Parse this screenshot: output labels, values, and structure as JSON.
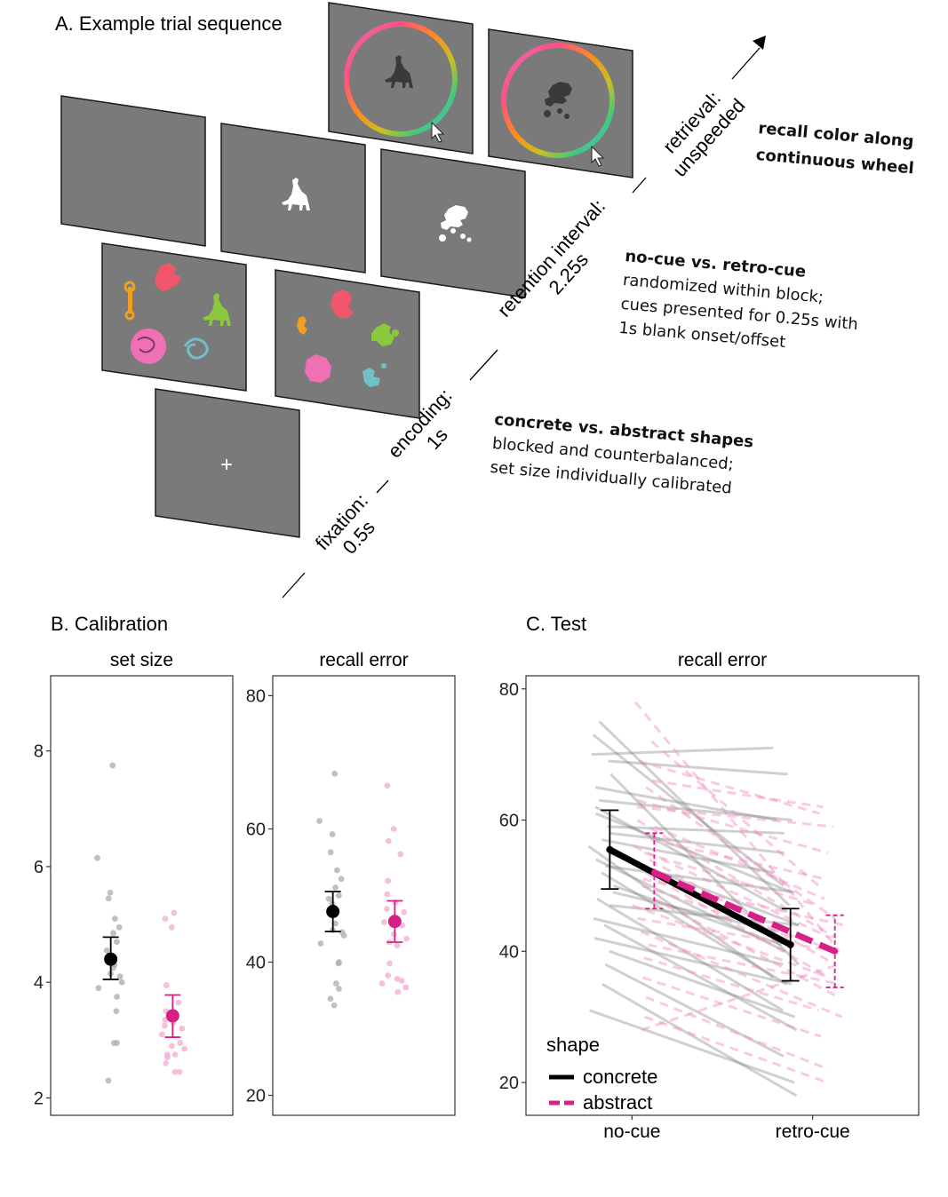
{
  "panelA": {
    "title": "A. Example trial sequence",
    "phases": {
      "fixation": [
        "fixation:",
        "0.5s"
      ],
      "encoding": [
        "encoding:",
        "1s"
      ],
      "retention": [
        "retention interval:",
        "2.25s"
      ],
      "retrieval": [
        "retrieval:",
        "unspeeded"
      ]
    },
    "fixation_symbol": "+",
    "notes": {
      "retrieval": [
        "recall color along",
        "continuous wheel"
      ],
      "cue": [
        "no-cue vs. retro-cue",
        "randomized within block;",
        "cues presented for 0.25s with",
        "1s blank onset/offset"
      ],
      "shapes": [
        "concrete vs. abstract shapes",
        "blocked and counterbalanced;",
        "set size individually calibrated"
      ]
    },
    "stimulus_colors": {
      "screen": "#7a7a7a",
      "wrench": "#f0a020",
      "witch": "#f2566a",
      "wolf": "#8cc83c",
      "globe": "#f070b4",
      "rope": "#70c0c8"
    }
  },
  "panelB": {
    "title": "B. Calibration"
  },
  "panelC": {
    "title": "C. Test"
  },
  "legend": {
    "title": "shape",
    "items": [
      "concrete",
      "abstract"
    ]
  },
  "chart_data": [
    {
      "type": "scatter",
      "title": "set size",
      "categories": [
        "concrete",
        "abstract"
      ],
      "ylim": [
        1.7,
        9.3
      ],
      "yticks": [
        2,
        4,
        6,
        8
      ],
      "series": [
        {
          "name": "concrete",
          "color": "#000000",
          "mean": 4.4,
          "ci": [
            4.05,
            4.78
          ],
          "points": [
            7.75,
            6.15,
            5.55,
            5.45,
            5.1,
            4.95,
            4.85,
            4.7,
            4.55,
            4.45,
            4.3,
            4.25,
            4.15,
            4.1,
            4.0,
            3.9,
            3.75,
            3.5,
            2.95,
            2.95,
            2.3
          ]
        },
        {
          "name": "abstract",
          "color": "#d62088",
          "mean": 3.42,
          "ci": [
            3.05,
            3.78
          ],
          "points": [
            5.2,
            5.1,
            4.95,
            3.95,
            3.65,
            3.5,
            3.35,
            3.3,
            3.25,
            3.2,
            3.1,
            2.95,
            2.9,
            2.85,
            2.75,
            2.75,
            2.7,
            2.6,
            2.45,
            2.45
          ]
        }
      ]
    },
    {
      "type": "scatter",
      "title": "recall error",
      "categories": [
        "concrete",
        "abstract"
      ],
      "ylim": [
        17,
        83
      ],
      "yticks": [
        20,
        40,
        60,
        80
      ],
      "series": [
        {
          "name": "concrete",
          "color": "#000000",
          "mean": 47.6,
          "ci": [
            44.6,
            50.6
          ],
          "points": [
            68.3,
            61.2,
            59.2,
            56.5,
            53.8,
            52.5,
            51.2,
            50.0,
            49.5,
            48.8,
            47.5,
            45.8,
            44.8,
            44.5,
            44.0,
            42.8,
            40.0,
            39.8,
            36.8,
            36.0,
            34.5,
            33.5
          ]
        },
        {
          "name": "abstract",
          "color": "#d62088",
          "mean": 46.1,
          "ci": [
            43.0,
            49.2
          ],
          "points": [
            66.5,
            60.0,
            58.2,
            56.2,
            52.2,
            50.2,
            49.0,
            48.0,
            47.5,
            46.0,
            45.5,
            44.2,
            43.5,
            43.0,
            42.5,
            39.8,
            38.0,
            37.5,
            37.2,
            36.8,
            36.2,
            35.5
          ]
        }
      ]
    },
    {
      "type": "line",
      "title": "recall error",
      "x": [
        "no-cue",
        "retro-cue"
      ],
      "ylim": [
        15,
        82
      ],
      "yticks": [
        20,
        40,
        60,
        80
      ],
      "series": [
        {
          "name": "concrete",
          "color": "#000000",
          "dash": false,
          "values": [
            55.5,
            41.0
          ],
          "ci": [
            [
              49.5,
              61.5
            ],
            [
              35.5,
              46.5
            ]
          ],
          "subjects": [
            [
              75,
              47
            ],
            [
              73,
              50
            ],
            [
              70,
              71
            ],
            [
              69,
              67
            ],
            [
              67,
              38
            ],
            [
              65,
              60
            ],
            [
              63,
              60
            ],
            [
              62,
              46
            ],
            [
              61,
              49
            ],
            [
              59,
              58
            ],
            [
              58,
              55
            ],
            [
              57,
              52
            ],
            [
              56,
              36
            ],
            [
              55,
              44
            ],
            [
              54,
              40
            ],
            [
              53,
              49
            ],
            [
              52,
              35
            ],
            [
              50,
              41
            ],
            [
              49,
              43
            ],
            [
              48,
              31
            ],
            [
              47,
              44
            ],
            [
              45,
              38
            ],
            [
              44,
              28
            ],
            [
              42,
              35
            ],
            [
              40,
              30
            ],
            [
              38,
              24
            ],
            [
              35,
              18
            ],
            [
              31,
              20
            ]
          ]
        },
        {
          "name": "abstract",
          "color": "#d62088",
          "dash": true,
          "values": [
            52.0,
            40.0
          ],
          "ci": [
            [
              46.5,
              58.0
            ],
            [
              34.5,
              45.5
            ]
          ],
          "subjects": [
            [
              78,
              40
            ],
            [
              72,
              50
            ],
            [
              69,
              61
            ],
            [
              66,
              62
            ],
            [
              65,
              45
            ],
            [
              63,
              55
            ],
            [
              62,
              59
            ],
            [
              60,
              42
            ],
            [
              59,
              48
            ],
            [
              57,
              51
            ],
            [
              56,
              42
            ],
            [
              55,
              47
            ],
            [
              54,
              38
            ],
            [
              52,
              36
            ],
            [
              51,
              44
            ],
            [
              50,
              41
            ],
            [
              48,
              33
            ],
            [
              47,
              36
            ],
            [
              45,
              40
            ],
            [
              43,
              30
            ],
            [
              41,
              35
            ],
            [
              39,
              31
            ],
            [
              36,
              27
            ],
            [
              33,
              22
            ],
            [
              30,
              20
            ],
            [
              28,
              38
            ]
          ]
        }
      ]
    }
  ]
}
